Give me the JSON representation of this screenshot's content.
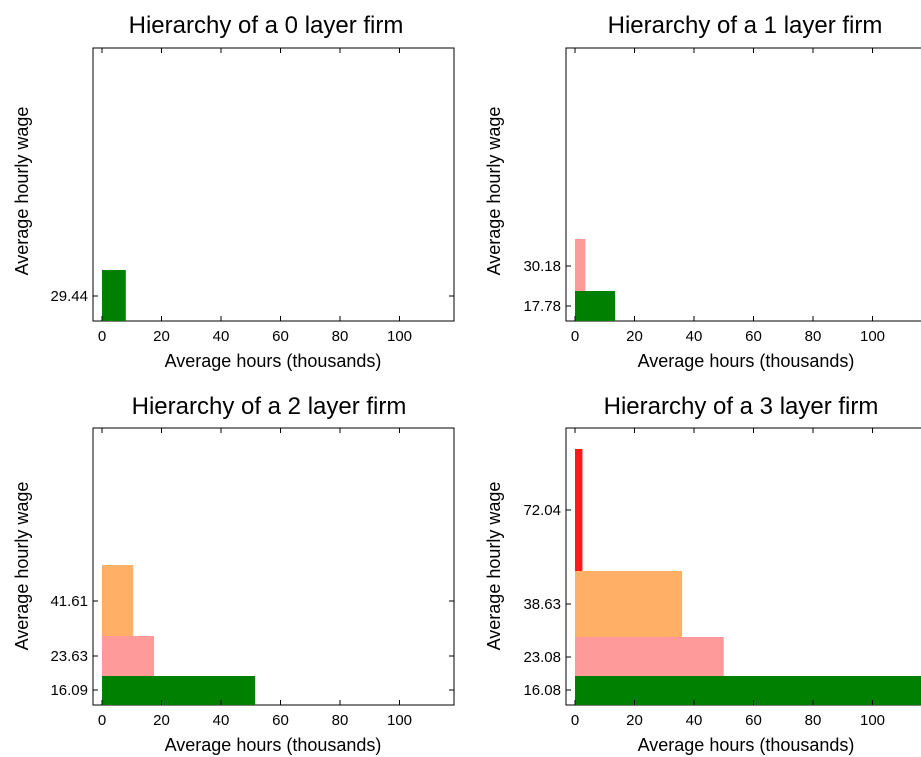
{
  "colors": {
    "layer0": "#008000",
    "layer1": "#ff9a9a",
    "layer2": "#ffb066",
    "layer3": "#ff1a1a"
  },
  "chart_data": [
    {
      "type": "bar",
      "title": "Hierarchy of a 0 layer firm",
      "xlabel": "Average hours (thousands)",
      "ylabel": "Average hourly wage",
      "xlim": [
        0,
        118
      ],
      "xticks": [
        0,
        20,
        40,
        60,
        80,
        100
      ],
      "ytick_labels": [
        "29.44"
      ],
      "bars": [
        {
          "layer": 0,
          "hours": 8,
          "wage": 29.44,
          "color": "#008000"
        }
      ]
    },
    {
      "type": "bar",
      "title": "Hierarchy of a 1 layer firm",
      "xlabel": "Average hours (thousands)",
      "ylabel": "Average hourly wage",
      "xlim": [
        0,
        118
      ],
      "xticks": [
        0,
        20,
        40,
        60,
        80,
        100
      ],
      "ytick_labels": [
        "17.78",
        "30.18"
      ],
      "bars": [
        {
          "layer": 0,
          "hours": 13.5,
          "wage": 17.78,
          "color": "#008000"
        },
        {
          "layer": 1,
          "hours": 3.5,
          "wage": 30.18,
          "color": "#ff9a9a"
        }
      ]
    },
    {
      "type": "bar",
      "title": "Hierarchy of a 2 layer firm",
      "xlabel": "Average hours (thousands)",
      "ylabel": "Average hourly wage",
      "xlim": [
        0,
        118
      ],
      "xticks": [
        0,
        20,
        40,
        60,
        80,
        100
      ],
      "ytick_labels": [
        "16.09",
        "23.63",
        "41.61"
      ],
      "bars": [
        {
          "layer": 0,
          "hours": 51.5,
          "wage": 16.09,
          "color": "#008000"
        },
        {
          "layer": 1,
          "hours": 17.5,
          "wage": 23.63,
          "color": "#ff9a9a"
        },
        {
          "layer": 2,
          "hours": 10.5,
          "wage": 41.61,
          "color": "#ffb066"
        }
      ]
    },
    {
      "type": "bar",
      "title": "Hierarchy of a 3 layer firm",
      "xlabel": "Average hours (thousands)",
      "ylabel": "Average hourly wage",
      "xlim": [
        0,
        118
      ],
      "xticks": [
        0,
        20,
        40,
        60,
        80,
        100
      ],
      "ytick_labels": [
        "16.08",
        "23.08",
        "38.63",
        "72.04"
      ],
      "bars": [
        {
          "layer": 0,
          "hours": 118,
          "wage": 16.08,
          "color": "#008000"
        },
        {
          "layer": 1,
          "hours": 50,
          "wage": 23.08,
          "color": "#ff9a9a"
        },
        {
          "layer": 2,
          "hours": 36,
          "wage": 38.63,
          "color": "#ffb066"
        },
        {
          "layer": 3,
          "hours": 2.5,
          "wage": 72.04,
          "color": "#ff1a1a"
        }
      ]
    }
  ]
}
